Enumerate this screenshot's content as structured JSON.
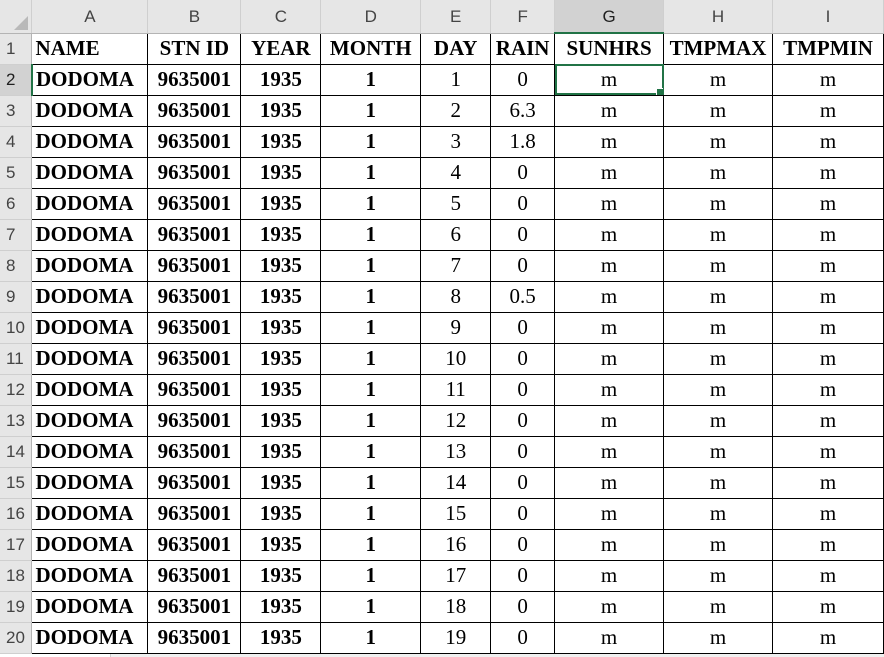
{
  "columns": [
    "A",
    "B",
    "C",
    "D",
    "E",
    "F",
    "G",
    "H",
    "I"
  ],
  "selected_column": "G",
  "selected_row": 2,
  "header_row": {
    "row": 1,
    "cells": [
      "NAME",
      "STN ID",
      "YEAR",
      "MONTH",
      "DAY",
      "RAIN",
      "SUNHRS",
      "TMPMAX",
      "TMPMIN"
    ]
  },
  "rows": [
    {
      "row": 2,
      "cells": [
        "DODOMA",
        "9635001",
        "1935",
        "1",
        "1",
        "0",
        "m",
        "m",
        "m"
      ]
    },
    {
      "row": 3,
      "cells": [
        "DODOMA",
        "9635001",
        "1935",
        "1",
        "2",
        "6.3",
        "m",
        "m",
        "m"
      ]
    },
    {
      "row": 4,
      "cells": [
        "DODOMA",
        "9635001",
        "1935",
        "1",
        "3",
        "1.8",
        "m",
        "m",
        "m"
      ]
    },
    {
      "row": 5,
      "cells": [
        "DODOMA",
        "9635001",
        "1935",
        "1",
        "4",
        "0",
        "m",
        "m",
        "m"
      ]
    },
    {
      "row": 6,
      "cells": [
        "DODOMA",
        "9635001",
        "1935",
        "1",
        "5",
        "0",
        "m",
        "m",
        "m"
      ]
    },
    {
      "row": 7,
      "cells": [
        "DODOMA",
        "9635001",
        "1935",
        "1",
        "6",
        "0",
        "m",
        "m",
        "m"
      ]
    },
    {
      "row": 8,
      "cells": [
        "DODOMA",
        "9635001",
        "1935",
        "1",
        "7",
        "0",
        "m",
        "m",
        "m"
      ]
    },
    {
      "row": 9,
      "cells": [
        "DODOMA",
        "9635001",
        "1935",
        "1",
        "8",
        "0.5",
        "m",
        "m",
        "m"
      ]
    },
    {
      "row": 10,
      "cells": [
        "DODOMA",
        "9635001",
        "1935",
        "1",
        "9",
        "0",
        "m",
        "m",
        "m"
      ]
    },
    {
      "row": 11,
      "cells": [
        "DODOMA",
        "9635001",
        "1935",
        "1",
        "10",
        "0",
        "m",
        "m",
        "m"
      ]
    },
    {
      "row": 12,
      "cells": [
        "DODOMA",
        "9635001",
        "1935",
        "1",
        "11",
        "0",
        "m",
        "m",
        "m"
      ]
    },
    {
      "row": 13,
      "cells": [
        "DODOMA",
        "9635001",
        "1935",
        "1",
        "12",
        "0",
        "m",
        "m",
        "m"
      ]
    },
    {
      "row": 14,
      "cells": [
        "DODOMA",
        "9635001",
        "1935",
        "1",
        "13",
        "0",
        "m",
        "m",
        "m"
      ]
    },
    {
      "row": 15,
      "cells": [
        "DODOMA",
        "9635001",
        "1935",
        "1",
        "14",
        "0",
        "m",
        "m",
        "m"
      ]
    },
    {
      "row": 16,
      "cells": [
        "DODOMA",
        "9635001",
        "1935",
        "1",
        "15",
        "0",
        "m",
        "m",
        "m"
      ]
    },
    {
      "row": 17,
      "cells": [
        "DODOMA",
        "9635001",
        "1935",
        "1",
        "16",
        "0",
        "m",
        "m",
        "m"
      ]
    },
    {
      "row": 18,
      "cells": [
        "DODOMA",
        "9635001",
        "1935",
        "1",
        "17",
        "0",
        "m",
        "m",
        "m"
      ]
    },
    {
      "row": 19,
      "cells": [
        "DODOMA",
        "9635001",
        "1935",
        "1",
        "18",
        "0",
        "m",
        "m",
        "m"
      ]
    },
    {
      "row": 20,
      "cells": [
        "DODOMA",
        "9635001",
        "1935",
        "1",
        "19",
        "0",
        "m",
        "m",
        "m"
      ]
    }
  ],
  "colors": {
    "selection_accent": "#217346",
    "header_bg": "#e6e6e6",
    "header_selected_bg": "#d2d2d2"
  }
}
